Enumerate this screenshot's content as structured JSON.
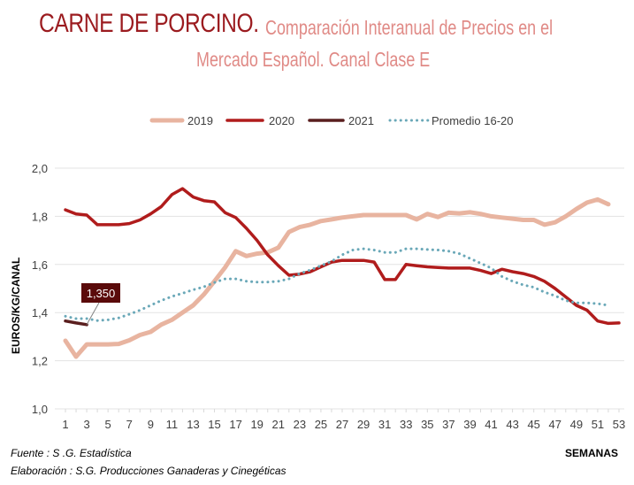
{
  "header": {
    "title_main": "CARNE DE PORCINO.",
    "title_sub_line1": "Comparación Interanual de Precios en el",
    "title_sub_line2": "Mercado Español. Canal Clase E"
  },
  "footer": {
    "source": "Fuente :  S .G. Estadística",
    "elaboration": "Elaboración : S.G. Producciones Ganaderas y Cinegéticas"
  },
  "colors": {
    "title_main": "#9b1b1f",
    "title_sub": "#e08a86",
    "series_2019": "#e8b4a0",
    "series_2020": "#b01c1c",
    "series_2021": "#5a1e1e",
    "series_promedio": "#6aa8b8",
    "callout_bg": "#5a0a0a",
    "grid": "#e3e3e3"
  },
  "chart_data": {
    "type": "line",
    "title": "CARNE DE PORCINO. Comparación Interanual de Precios en el Mercado Español. Canal Clase E",
    "xlabel": "SEMANAS",
    "ylabel": "EUROS/KG/CANAL",
    "ylim": [
      1.0,
      2.0
    ],
    "xlim": [
      1,
      53
    ],
    "y_ticks": [
      "1,0",
      "1,2",
      "1,4",
      "1,6",
      "1,8",
      "2,0"
    ],
    "y_tick_values": [
      1.0,
      1.2,
      1.4,
      1.6,
      1.8,
      2.0
    ],
    "x_ticks": [
      "1",
      "3",
      "5",
      "7",
      "9",
      "11",
      "13",
      "15",
      "17",
      "19",
      "21",
      "23",
      "25",
      "27",
      "29",
      "31",
      "33",
      "35",
      "37",
      "39",
      "41",
      "43",
      "45",
      "47",
      "49",
      "51",
      "53"
    ],
    "grid": true,
    "legend_position": "top-center",
    "annotation": {
      "text": "1,350",
      "series": "2021",
      "week": 3
    },
    "series": [
      {
        "name": "2019",
        "style": "solid",
        "x": [
          1,
          2,
          3,
          4,
          5,
          6,
          7,
          8,
          9,
          10,
          11,
          12,
          13,
          14,
          15,
          16,
          17,
          18,
          19,
          20,
          21,
          22,
          23,
          24,
          25,
          26,
          27,
          28,
          29,
          30,
          31,
          32,
          33,
          34,
          35,
          36,
          37,
          38,
          39,
          40,
          41,
          42,
          43,
          44,
          45,
          46,
          47,
          48,
          49,
          50,
          51,
          52
        ],
        "values": [
          1.283,
          1.217,
          1.268,
          1.268,
          1.268,
          1.27,
          1.285,
          1.307,
          1.32,
          1.35,
          1.37,
          1.4,
          1.43,
          1.475,
          1.53,
          1.588,
          1.655,
          1.635,
          1.645,
          1.65,
          1.67,
          1.735,
          1.755,
          1.765,
          1.78,
          1.787,
          1.795,
          1.8,
          1.805,
          1.805,
          1.805,
          1.805,
          1.805,
          1.787,
          1.81,
          1.797,
          1.815,
          1.812,
          1.817,
          1.81,
          1.8,
          1.795,
          1.79,
          1.785,
          1.785,
          1.765,
          1.775,
          1.8,
          1.83,
          1.857,
          1.87,
          1.85
        ]
      },
      {
        "name": "2020",
        "style": "solid",
        "x": [
          1,
          2,
          3,
          4,
          5,
          6,
          7,
          8,
          9,
          10,
          11,
          12,
          13,
          14,
          15,
          16,
          17,
          18,
          19,
          20,
          21,
          22,
          23,
          24,
          25,
          26,
          27,
          28,
          29,
          30,
          31,
          32,
          33,
          34,
          35,
          36,
          37,
          38,
          39,
          40,
          41,
          42,
          43,
          44,
          45,
          46,
          47,
          48,
          49,
          50,
          51,
          52,
          53
        ],
        "values": [
          1.827,
          1.81,
          1.805,
          1.765,
          1.765,
          1.765,
          1.77,
          1.785,
          1.81,
          1.84,
          1.89,
          1.915,
          1.88,
          1.865,
          1.86,
          1.815,
          1.795,
          1.75,
          1.7,
          1.64,
          1.595,
          1.555,
          1.56,
          1.57,
          1.59,
          1.61,
          1.617,
          1.617,
          1.617,
          1.61,
          1.537,
          1.537,
          1.6,
          1.595,
          1.59,
          1.587,
          1.585,
          1.585,
          1.585,
          1.575,
          1.562,
          1.58,
          1.57,
          1.562,
          1.55,
          1.53,
          1.5,
          1.465,
          1.43,
          1.41,
          1.365,
          1.355,
          1.357
        ]
      },
      {
        "name": "2021",
        "style": "solid",
        "x": [
          1,
          2,
          3
        ],
        "values": [
          1.365,
          1.357,
          1.35
        ]
      },
      {
        "name": "Promedio 16-20",
        "style": "dotted",
        "x": [
          1,
          2,
          3,
          4,
          5,
          6,
          7,
          8,
          9,
          10,
          11,
          12,
          13,
          14,
          15,
          16,
          17,
          18,
          19,
          20,
          21,
          22,
          23,
          24,
          25,
          26,
          27,
          28,
          29,
          30,
          31,
          32,
          33,
          34,
          35,
          36,
          37,
          38,
          39,
          40,
          41,
          42,
          43,
          44,
          45,
          46,
          47,
          48,
          49,
          50,
          51,
          52
        ],
        "values": [
          1.385,
          1.375,
          1.375,
          1.367,
          1.37,
          1.378,
          1.393,
          1.41,
          1.43,
          1.45,
          1.467,
          1.48,
          1.495,
          1.507,
          1.525,
          1.54,
          1.54,
          1.53,
          1.527,
          1.527,
          1.53,
          1.54,
          1.562,
          1.577,
          1.595,
          1.613,
          1.64,
          1.66,
          1.665,
          1.66,
          1.65,
          1.65,
          1.665,
          1.665,
          1.662,
          1.66,
          1.655,
          1.645,
          1.625,
          1.605,
          1.585,
          1.55,
          1.53,
          1.515,
          1.505,
          1.485,
          1.47,
          1.45,
          1.44,
          1.44,
          1.437,
          1.43
        ]
      }
    ]
  }
}
